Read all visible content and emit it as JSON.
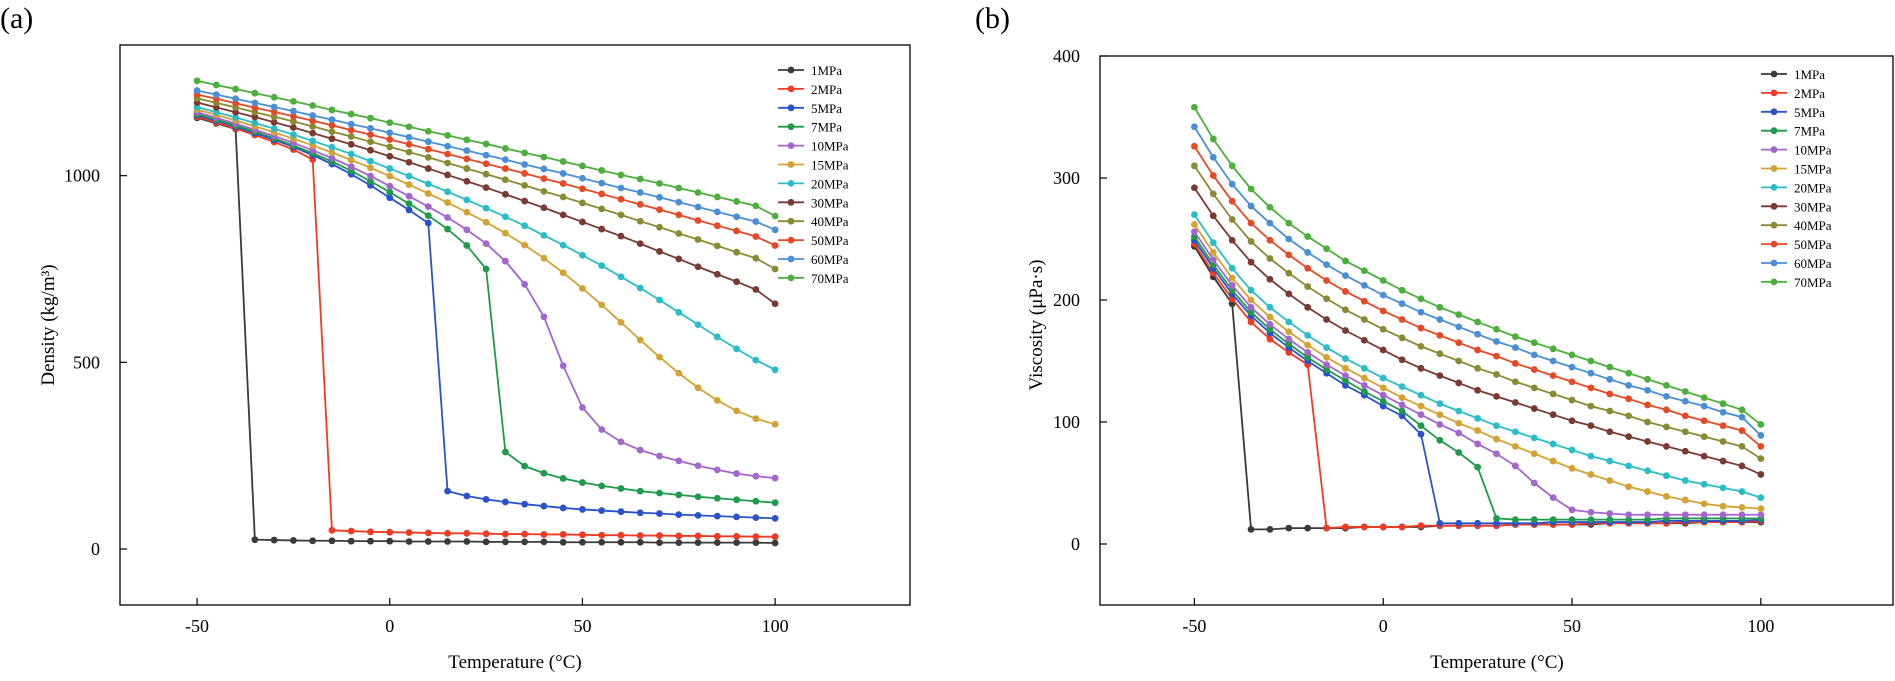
{
  "chart_data": [
    {
      "panel": "(a)",
      "type": "line",
      "xlabel": "Temperature (°C)",
      "ylabel": "Density (kg/m³)",
      "xlim": [
        -70,
        135
      ],
      "ylim": [
        -150,
        1350
      ],
      "xticks": [
        -50,
        0,
        50,
        100
      ],
      "yticks": [
        0,
        500,
        1000
      ],
      "legend_position": "top-right",
      "x": [
        -50,
        -45,
        -40,
        -35,
        -30,
        -25,
        -20,
        -15,
        -10,
        -5,
        0,
        5,
        10,
        15,
        20,
        25,
        30,
        35,
        40,
        45,
        50,
        55,
        60,
        65,
        70,
        75,
        80,
        85,
        90,
        95,
        100
      ],
      "series": [
        {
          "name": "1MPa",
          "color": "#3a3a3a",
          "values": [
            1155,
            1140,
            1125,
            25,
            24,
            23,
            22,
            22,
            21,
            21,
            21,
            20,
            20,
            20,
            20,
            19,
            19,
            19,
            19,
            18,
            18,
            18,
            18,
            18,
            17,
            17,
            17,
            17,
            17,
            17,
            16
          ]
        },
        {
          "name": "2MPa",
          "color": "#ee3b24",
          "values": [
            1158,
            1142,
            1126,
            1109,
            1090,
            1070,
            1043,
            50,
            48,
            46,
            45,
            44,
            43,
            42,
            42,
            41,
            40,
            40,
            39,
            39,
            38,
            37,
            37,
            36,
            36,
            35,
            35,
            34,
            34,
            33,
            33
          ]
        },
        {
          "name": "5MPa",
          "color": "#2a52c9",
          "values": [
            1162,
            1147,
            1131,
            1114,
            1096,
            1077,
            1055,
            1031,
            1004,
            974,
            941,
            908,
            873,
            155,
            142,
            133,
            126,
            120,
            115,
            110,
            106,
            103,
            100,
            97,
            95,
            92,
            90,
            88,
            86,
            84,
            82
          ]
        },
        {
          "name": "7MPa",
          "color": "#1f9a4a",
          "values": [
            1165,
            1150,
            1134,
            1118,
            1100,
            1081,
            1060,
            1038,
            1013,
            985,
            956,
            925,
            893,
            857,
            813,
            750,
            260,
            222,
            203,
            189,
            178,
            169,
            162,
            155,
            150,
            145,
            140,
            136,
            132,
            128,
            124
          ]
        },
        {
          "name": "10MPa",
          "color": "#a366cc",
          "values": [
            1170,
            1155,
            1139,
            1123,
            1106,
            1088,
            1068,
            1047,
            1024,
            999,
            972,
            945,
            917,
            888,
            855,
            818,
            771,
            709,
            622,
            491,
            379,
            320,
            287,
            265,
            249,
            236,
            223,
            212,
            202,
            195,
            190
          ]
        },
        {
          "name": "15MPa",
          "color": "#d4a234",
          "values": [
            1177,
            1163,
            1148,
            1132,
            1116,
            1099,
            1081,
            1062,
            1042,
            1021,
            999,
            976,
            952,
            928,
            902,
            875,
            846,
            814,
            779,
            740,
            698,
            654,
            607,
            560,
            514,
            471,
            432,
            398,
            370,
            349,
            334
          ]
        },
        {
          "name": "20MPa",
          "color": "#2bbdc7",
          "values": [
            1184,
            1170,
            1156,
            1141,
            1126,
            1110,
            1093,
            1076,
            1058,
            1039,
            1019,
            999,
            978,
            957,
            935,
            913,
            890,
            866,
            840,
            814,
            787,
            759,
            729,
            699,
            667,
            634,
            601,
            568,
            536,
            506,
            480
          ]
        },
        {
          "name": "30MPa",
          "color": "#7a3a32",
          "values": [
            1196,
            1183,
            1170,
            1157,
            1143,
            1129,
            1114,
            1099,
            1084,
            1068,
            1052,
            1036,
            1019,
            1002,
            985,
            968,
            950,
            932,
            914,
            895,
            876,
            857,
            838,
            818,
            797,
            777,
            756,
            736,
            716,
            695,
            657
          ]
        },
        {
          "name": "40MPa",
          "color": "#8a8a35",
          "values": [
            1207,
            1195,
            1183,
            1170,
            1158,
            1145,
            1132,
            1118,
            1105,
            1091,
            1077,
            1063,
            1049,
            1034,
            1019,
            1004,
            989,
            974,
            958,
            943,
            927,
            911,
            895,
            878,
            862,
            845,
            829,
            812,
            795,
            779,
            750
          ]
        },
        {
          "name": "50MPa",
          "color": "#e54a26",
          "values": [
            1217,
            1206,
            1194,
            1182,
            1171,
            1159,
            1147,
            1135,
            1122,
            1110,
            1097,
            1084,
            1071,
            1058,
            1045,
            1032,
            1019,
            1006,
            992,
            979,
            965,
            951,
            937,
            923,
            909,
            895,
            880,
            866,
            852,
            837,
            813
          ]
        },
        {
          "name": "60MPa",
          "color": "#4a8fd6",
          "values": [
            1228,
            1217,
            1206,
            1195,
            1184,
            1173,
            1161,
            1150,
            1138,
            1127,
            1115,
            1103,
            1091,
            1079,
            1067,
            1055,
            1043,
            1030,
            1018,
            1006,
            993,
            980,
            967,
            955,
            942,
            929,
            916,
            903,
            890,
            877,
            855
          ]
        },
        {
          "name": "70MPa",
          "color": "#4cae3b",
          "values": [
            1254,
            1243,
            1232,
            1221,
            1210,
            1199,
            1188,
            1176,
            1165,
            1154,
            1142,
            1131,
            1119,
            1108,
            1096,
            1085,
            1073,
            1061,
            1050,
            1038,
            1026,
            1014,
            1002,
            991,
            979,
            967,
            955,
            943,
            931,
            919,
            892
          ]
        }
      ]
    },
    {
      "panel": "(b)",
      "type": "line",
      "xlabel": "Temperature (°C)",
      "ylabel": "Viscosity (μPa·s)",
      "xlim": [
        -75,
        135
      ],
      "ylim": [
        -50,
        400
      ],
      "xticks": [
        -50,
        0,
        50,
        100
      ],
      "yticks": [
        0,
        100,
        200,
        300,
        400
      ],
      "legend_position": "top-right",
      "x": [
        -50,
        -45,
        -40,
        -35,
        -30,
        -25,
        -20,
        -15,
        -10,
        -5,
        0,
        5,
        10,
        15,
        20,
        25,
        30,
        35,
        40,
        45,
        50,
        55,
        60,
        65,
        70,
        75,
        80,
        85,
        90,
        95,
        100
      ],
      "series": [
        {
          "name": "1MPa",
          "color": "#3a3a3a",
          "values": [
            244,
            219,
            197,
            12,
            12,
            13,
            13,
            13,
            13,
            14,
            14,
            14,
            14,
            15,
            15,
            15,
            15,
            16,
            16,
            16,
            16,
            16,
            17,
            17,
            17,
            17,
            17,
            18,
            18,
            18,
            18
          ]
        },
        {
          "name": "2MPa",
          "color": "#ee3b24",
          "values": [
            246,
            222,
            201,
            182,
            168,
            157,
            147,
            13,
            14,
            14,
            14,
            14,
            15,
            15,
            15,
            15,
            15,
            16,
            16,
            16,
            16,
            17,
            17,
            17,
            17,
            17,
            18,
            18,
            18,
            18,
            19
          ]
        },
        {
          "name": "5MPa",
          "color": "#2a52c9",
          "values": [
            249,
            226,
            205,
            187,
            173,
            161,
            150,
            140,
            130,
            122,
            113,
            105,
            90,
            17,
            17,
            17,
            17,
            17,
            17,
            18,
            18,
            18,
            18,
            18,
            18,
            19,
            19,
            19,
            19,
            19,
            20
          ]
        },
        {
          "name": "7MPa",
          "color": "#1f9a4a",
          "values": [
            252,
            229,
            208,
            190,
            176,
            164,
            153,
            143,
            134,
            125,
            117,
            109,
            97,
            85,
            75,
            63,
            21,
            20,
            20,
            20,
            20,
            20,
            20,
            20,
            20,
            21,
            21,
            21,
            21,
            21,
            21
          ]
        },
        {
          "name": "10MPa",
          "color": "#a366cc",
          "values": [
            256,
            233,
            212,
            194,
            180,
            168,
            157,
            147,
            138,
            130,
            122,
            114,
            106,
            98,
            91,
            82,
            74,
            64,
            50,
            38,
            28,
            26,
            25,
            24,
            24,
            24,
            24,
            24,
            24,
            24,
            24
          ]
        },
        {
          "name": "15MPa",
          "color": "#d4a234",
          "values": [
            262,
            239,
            218,
            200,
            186,
            174,
            163,
            153,
            144,
            136,
            128,
            120,
            113,
            106,
            99,
            93,
            86,
            80,
            74,
            68,
            62,
            57,
            52,
            47,
            43,
            39,
            36,
            33,
            31,
            30,
            29
          ]
        },
        {
          "name": "20MPa",
          "color": "#2bbdc7",
          "values": [
            270,
            247,
            226,
            208,
            194,
            182,
            171,
            161,
            152,
            144,
            136,
            129,
            122,
            115,
            109,
            103,
            97,
            92,
            87,
            82,
            77,
            72,
            68,
            64,
            60,
            56,
            52,
            49,
            46,
            43,
            38
          ]
        },
        {
          "name": "30MPa",
          "color": "#7a3a32",
          "values": [
            292,
            269,
            249,
            231,
            217,
            205,
            194,
            184,
            175,
            167,
            159,
            151,
            144,
            138,
            132,
            126,
            121,
            116,
            111,
            106,
            101,
            97,
            92,
            88,
            84,
            80,
            76,
            72,
            68,
            64,
            57
          ]
        },
        {
          "name": "40MPa",
          "color": "#8a8a35",
          "values": [
            310,
            287,
            266,
            248,
            234,
            222,
            211,
            201,
            192,
            184,
            176,
            169,
            162,
            156,
            150,
            144,
            139,
            133,
            128,
            123,
            118,
            113,
            109,
            105,
            100,
            96,
            92,
            88,
            84,
            80,
            70
          ]
        },
        {
          "name": "50MPa",
          "color": "#e54a26",
          "values": [
            326,
            302,
            281,
            263,
            249,
            237,
            226,
            216,
            207,
            199,
            191,
            184,
            177,
            171,
            165,
            159,
            154,
            148,
            143,
            138,
            133,
            128,
            123,
            119,
            114,
            110,
            105,
            101,
            97,
            93,
            80
          ]
        },
        {
          "name": "60MPa",
          "color": "#4a8fd6",
          "values": [
            342,
            317,
            295,
            277,
            263,
            250,
            239,
            229,
            220,
            212,
            204,
            197,
            190,
            184,
            178,
            172,
            166,
            161,
            155,
            150,
            145,
            140,
            135,
            130,
            126,
            121,
            117,
            113,
            108,
            104,
            89
          ]
        },
        {
          "name": "70MPa",
          "color": "#4cae3b",
          "values": [
            358,
            332,
            310,
            291,
            276,
            263,
            252,
            242,
            232,
            224,
            216,
            208,
            201,
            194,
            188,
            182,
            176,
            170,
            165,
            160,
            155,
            150,
            145,
            140,
            135,
            130,
            125,
            120,
            115,
            110,
            98
          ]
        }
      ]
    }
  ]
}
